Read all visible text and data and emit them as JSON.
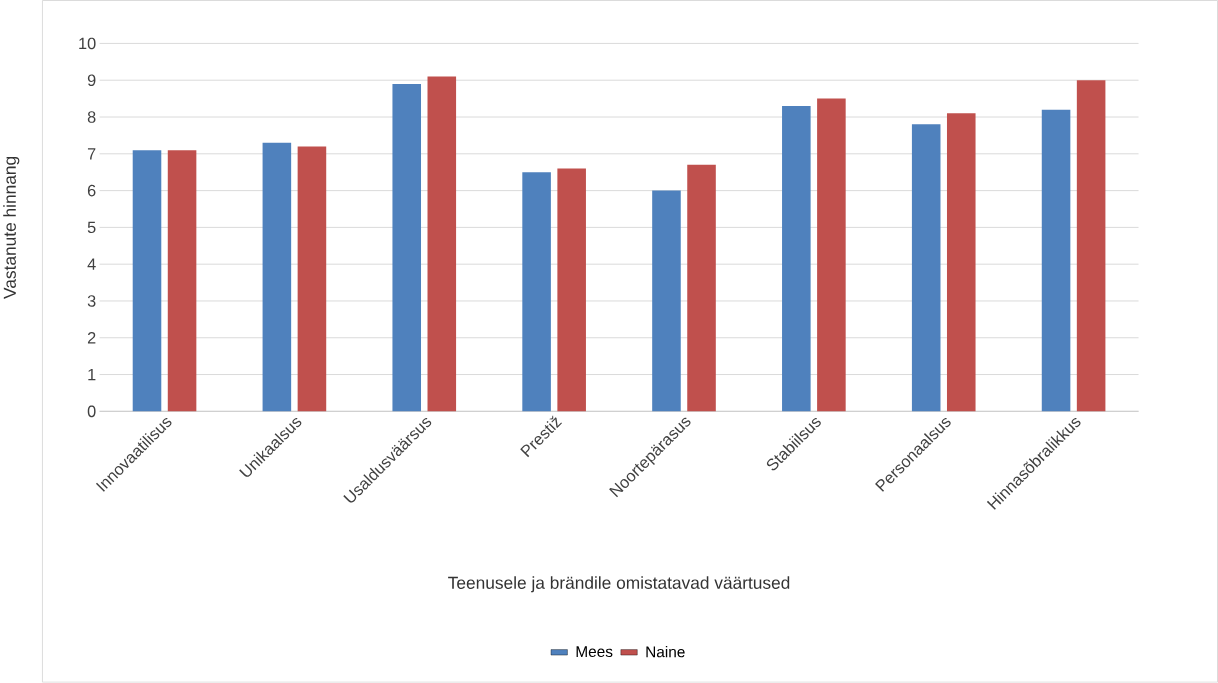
{
  "chart_data": {
    "type": "bar",
    "xlabel": "Teenusele ja brändile omistatavad väärtused",
    "ylabel": "Vastanute hinnang",
    "categories": [
      "Innovaatilisus",
      "Unikaalsus",
      "Usaldusväärsus",
      "Prestiž",
      "Noortepärasus",
      "Stabiilsus",
      "Personaalsus",
      "Hinnasõbralikkus"
    ],
    "series": [
      {
        "name": "Mees",
        "color": "#4f81bd",
        "values": [
          7.1,
          7.3,
          8.9,
          6.5,
          6.0,
          8.3,
          7.8,
          8.2
        ]
      },
      {
        "name": "Naine",
        "color": "#c0504d",
        "values": [
          7.1,
          7.2,
          9.1,
          6.6,
          6.7,
          8.5,
          8.1,
          9.0
        ]
      }
    ],
    "ylim": [
      0,
      10
    ],
    "yticks": [
      0,
      1,
      2,
      3,
      4,
      5,
      6,
      7,
      8,
      9,
      10
    ],
    "grid": "y",
    "legend": "bottom"
  }
}
